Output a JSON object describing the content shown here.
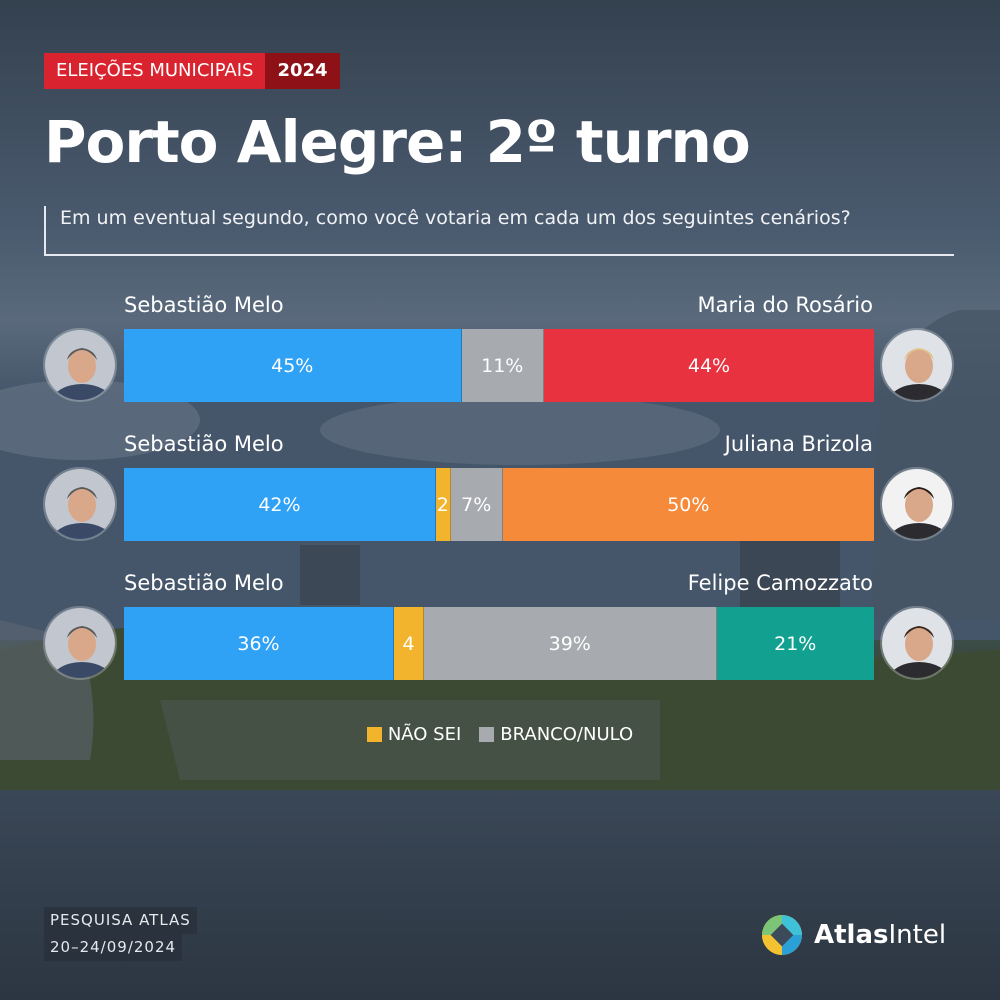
{
  "header": {
    "tag_label": "ELEIÇÕES MUNICIPAIS",
    "tag_year": "2024",
    "title": "Porto Alegre: 2º turno",
    "question": "Em um eventual segundo, como você votaria em cada um dos seguintes cenários?"
  },
  "colors": {
    "melo": "#2fa2f5",
    "branco_nulo": "#a7aaae",
    "nao_sei": "#f2b32d",
    "rosario": "#e9323f",
    "brizola": "#f58a3a",
    "camozzato": "#12a090",
    "tag_red": "#d9232e",
    "tag_dark": "#8e1118"
  },
  "chart_data": {
    "type": "bar",
    "orientation": "horizontal-stacked",
    "legend_position": "bottom-center",
    "scenarios": [
      {
        "left": "Sebastião Melo",
        "right": "Maria do Rosário",
        "segments": [
          {
            "series": "Sebastião Melo",
            "value": 45,
            "label": "45%"
          },
          {
            "series": "BRANCO/NULO",
            "value": 11,
            "label": "11%"
          },
          {
            "series": "Maria do Rosário",
            "value": 44,
            "label": "44%"
          }
        ]
      },
      {
        "left": "Sebastião Melo",
        "right": "Juliana Brizola",
        "segments": [
          {
            "series": "Sebastião Melo",
            "value": 42,
            "label": "42%"
          },
          {
            "series": "NÃO SEI",
            "value": 2,
            "label": "2"
          },
          {
            "series": "BRANCO/NULO",
            "value": 7,
            "label": "7%"
          },
          {
            "series": "Juliana Brizola",
            "value": 50,
            "label": "50%"
          }
        ]
      },
      {
        "left": "Sebastião Melo",
        "right": "Felipe Camozzato",
        "segments": [
          {
            "series": "Sebastião Melo",
            "value": 36,
            "label": "36%"
          },
          {
            "series": "NÃO SEI",
            "value": 4,
            "label": "4"
          },
          {
            "series": "BRANCO/NULO",
            "value": 39,
            "label": "39%"
          },
          {
            "series": "Felipe Camozzato",
            "value": 21,
            "label": "21%"
          }
        ]
      }
    ],
    "legend": [
      "NÃO SEI",
      "BRANCO/NULO"
    ]
  },
  "footer": {
    "source": "PESQUISA ATLAS",
    "dates": "20–24/09/2024"
  },
  "brand": {
    "name_bold": "Atlas",
    "name_light": "Intel"
  }
}
